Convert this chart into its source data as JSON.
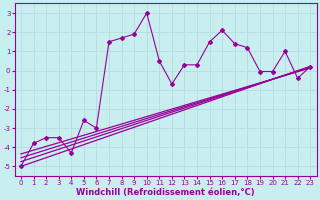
{
  "xlabel": "Windchill (Refroidissement éolien,°C)",
  "background_color": "#c8eef0",
  "grid_color": "#b8dfe0",
  "line_color": "#990099",
  "x_data": [
    0,
    1,
    2,
    3,
    4,
    5,
    6,
    7,
    8,
    9,
    10,
    11,
    12,
    13,
    14,
    15,
    16,
    17,
    18,
    19,
    20,
    21,
    22,
    23
  ],
  "y_data": [
    -5.0,
    -3.8,
    -3.5,
    -3.5,
    -4.3,
    -2.6,
    -3.0,
    1.5,
    1.7,
    1.9,
    3.0,
    0.5,
    -0.7,
    0.3,
    0.3,
    1.5,
    2.1,
    1.4,
    1.2,
    -0.05,
    -0.05,
    1.0,
    -0.4,
    0.2
  ],
  "reg_lines": [
    [
      -5.0,
      0.227
    ],
    [
      -4.75,
      0.215
    ],
    [
      -4.55,
      0.205
    ],
    [
      -4.35,
      0.195
    ]
  ],
  "xlim": [
    -0.5,
    23.5
  ],
  "ylim": [
    -5.5,
    3.5
  ],
  "yticks": [
    -5,
    -4,
    -3,
    -2,
    -1,
    0,
    1,
    2,
    3
  ],
  "xticks": [
    0,
    1,
    2,
    3,
    4,
    5,
    6,
    7,
    8,
    9,
    10,
    11,
    12,
    13,
    14,
    15,
    16,
    17,
    18,
    19,
    20,
    21,
    22,
    23
  ],
  "tick_fontsize": 5.0,
  "xlabel_fontsize": 6.0
}
